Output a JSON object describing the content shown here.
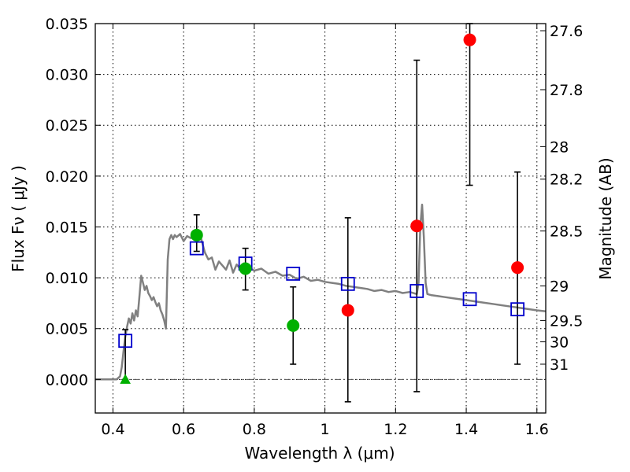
{
  "chart_data": {
    "type": "scatter",
    "xlabel": "Wavelength  λ (μm)",
    "ylabel": "Flux  Fν  ( μJy )",
    "ylabel2": "Magnitude (AB)",
    "xlim": [
      0.35,
      1.625
    ],
    "ylim": [
      -0.0033,
      0.035
    ],
    "grid": true,
    "x_ticks": [
      {
        "value": 0.4,
        "label": "0.4"
      },
      {
        "value": 0.6,
        "label": "0.6"
      },
      {
        "value": 0.8,
        "label": "0.8"
      },
      {
        "value": 1.0,
        "label": "1"
      },
      {
        "value": 1.2,
        "label": "1.2"
      },
      {
        "value": 1.4,
        "label": "1.4"
      },
      {
        "value": 1.6,
        "label": "1.6"
      }
    ],
    "y_ticks": [
      {
        "value": 0.0,
        "label": "0.000"
      },
      {
        "value": 0.005,
        "label": "0.005"
      },
      {
        "value": 0.01,
        "label": "0.010"
      },
      {
        "value": 0.015,
        "label": "0.015"
      },
      {
        "value": 0.02,
        "label": "0.020"
      },
      {
        "value": 0.025,
        "label": "0.025"
      },
      {
        "value": 0.03,
        "label": "0.030"
      },
      {
        "value": 0.035,
        "label": "0.035"
      }
    ],
    "mag_ticks": [
      {
        "value": 0.0343,
        "label": "27.6"
      },
      {
        "value": 0.0285,
        "label": "27.8"
      },
      {
        "value": 0.0229,
        "label": "28"
      },
      {
        "value": 0.0197,
        "label": "28.2"
      },
      {
        "value": 0.0146,
        "label": "28.5"
      },
      {
        "value": 0.0092,
        "label": "29"
      },
      {
        "value": 0.0058,
        "label": "29.5"
      },
      {
        "value": 0.0037,
        "label": "30"
      },
      {
        "value": 0.0015,
        "label": "31"
      }
    ],
    "model_sed": {
      "color": "#808080",
      "x": [
        0.35,
        0.4,
        0.41,
        0.42,
        0.425,
        0.43,
        0.435,
        0.44,
        0.445,
        0.45,
        0.455,
        0.46,
        0.465,
        0.47,
        0.475,
        0.48,
        0.485,
        0.49,
        0.495,
        0.5,
        0.505,
        0.51,
        0.515,
        0.52,
        0.525,
        0.53,
        0.535,
        0.54,
        0.545,
        0.55,
        0.555,
        0.56,
        0.565,
        0.57,
        0.575,
        0.58,
        0.59,
        0.6,
        0.61,
        0.62,
        0.63,
        0.64,
        0.65,
        0.66,
        0.67,
        0.68,
        0.69,
        0.7,
        0.71,
        0.72,
        0.73,
        0.74,
        0.75,
        0.76,
        0.77,
        0.78,
        0.8,
        0.82,
        0.84,
        0.86,
        0.88,
        0.9,
        0.92,
        0.94,
        0.96,
        0.98,
        1.0,
        1.02,
        1.04,
        1.06,
        1.08,
        1.1,
        1.12,
        1.14,
        1.16,
        1.18,
        1.2,
        1.22,
        1.24,
        1.26,
        1.265,
        1.27,
        1.275,
        1.28,
        1.285,
        1.29,
        1.3,
        1.32,
        1.34,
        1.36,
        1.38,
        1.4,
        1.44,
        1.48,
        1.52,
        1.56,
        1.6,
        1.625
      ],
      "y": [
        0.0,
        0.0,
        0.0,
        0.0003,
        0.0012,
        0.0028,
        0.0042,
        0.0052,
        0.006,
        0.0055,
        0.0065,
        0.0058,
        0.0068,
        0.0062,
        0.0082,
        0.0102,
        0.0095,
        0.0088,
        0.0092,
        0.0085,
        0.0082,
        0.0078,
        0.0081,
        0.0076,
        0.0072,
        0.0075,
        0.0068,
        0.0064,
        0.0058,
        0.005,
        0.0118,
        0.0138,
        0.0142,
        0.0138,
        0.0142,
        0.014,
        0.0143,
        0.0136,
        0.0141,
        0.0139,
        0.0145,
        0.014,
        0.0138,
        0.0125,
        0.0118,
        0.012,
        0.0108,
        0.0116,
        0.0112,
        0.0108,
        0.0117,
        0.0105,
        0.0113,
        0.0109,
        0.0114,
        0.0111,
        0.0107,
        0.0109,
        0.0104,
        0.0106,
        0.0102,
        0.0103,
        0.0099,
        0.0101,
        0.0097,
        0.0098,
        0.0096,
        0.0095,
        0.0094,
        0.0092,
        0.0091,
        0.009,
        0.0089,
        0.0087,
        0.0088,
        0.0086,
        0.0087,
        0.0085,
        0.0086,
        0.0084,
        0.0095,
        0.015,
        0.0172,
        0.014,
        0.0095,
        0.0084,
        0.0083,
        0.0082,
        0.0081,
        0.008,
        0.0079,
        0.0078,
        0.0076,
        0.0074,
        0.0072,
        0.007,
        0.0068,
        0.0067
      ]
    },
    "series": [
      {
        "marker": "square",
        "color": "#0000cc",
        "x": [
          0.435,
          0.637,
          0.775,
          0.91,
          1.065,
          1.26,
          1.41,
          1.545
        ],
        "y": [
          0.0038,
          0.0129,
          0.0114,
          0.0104,
          0.0094,
          0.0087,
          0.0079,
          0.0069
        ]
      },
      {
        "marker": "circle",
        "color": "#00b000",
        "x": [
          0.637,
          0.775,
          0.91
        ],
        "y": [
          0.0142,
          0.0109,
          0.0053
        ],
        "yerr_low": [
          0.0126,
          0.0088,
          0.0015
        ],
        "yerr_high": [
          0.0162,
          0.0129,
          0.0091
        ]
      },
      {
        "marker": "circle",
        "color": "#ff0000",
        "x": [
          1.065,
          1.26,
          1.41,
          1.545
        ],
        "y": [
          0.0068,
          0.0151,
          0.0334,
          0.011
        ],
        "yerr_low": [
          -0.0022,
          -0.0012,
          0.0191,
          0.0015
        ],
        "yerr_high": [
          0.0159,
          0.0314,
          0.035,
          0.0204
        ]
      },
      {
        "marker": "triangle",
        "color": "#00b000",
        "x": [
          0.435
        ],
        "y": [
          0.0
        ],
        "yerr_low": [
          0.0
        ],
        "yerr_high": [
          0.0049
        ]
      }
    ]
  }
}
